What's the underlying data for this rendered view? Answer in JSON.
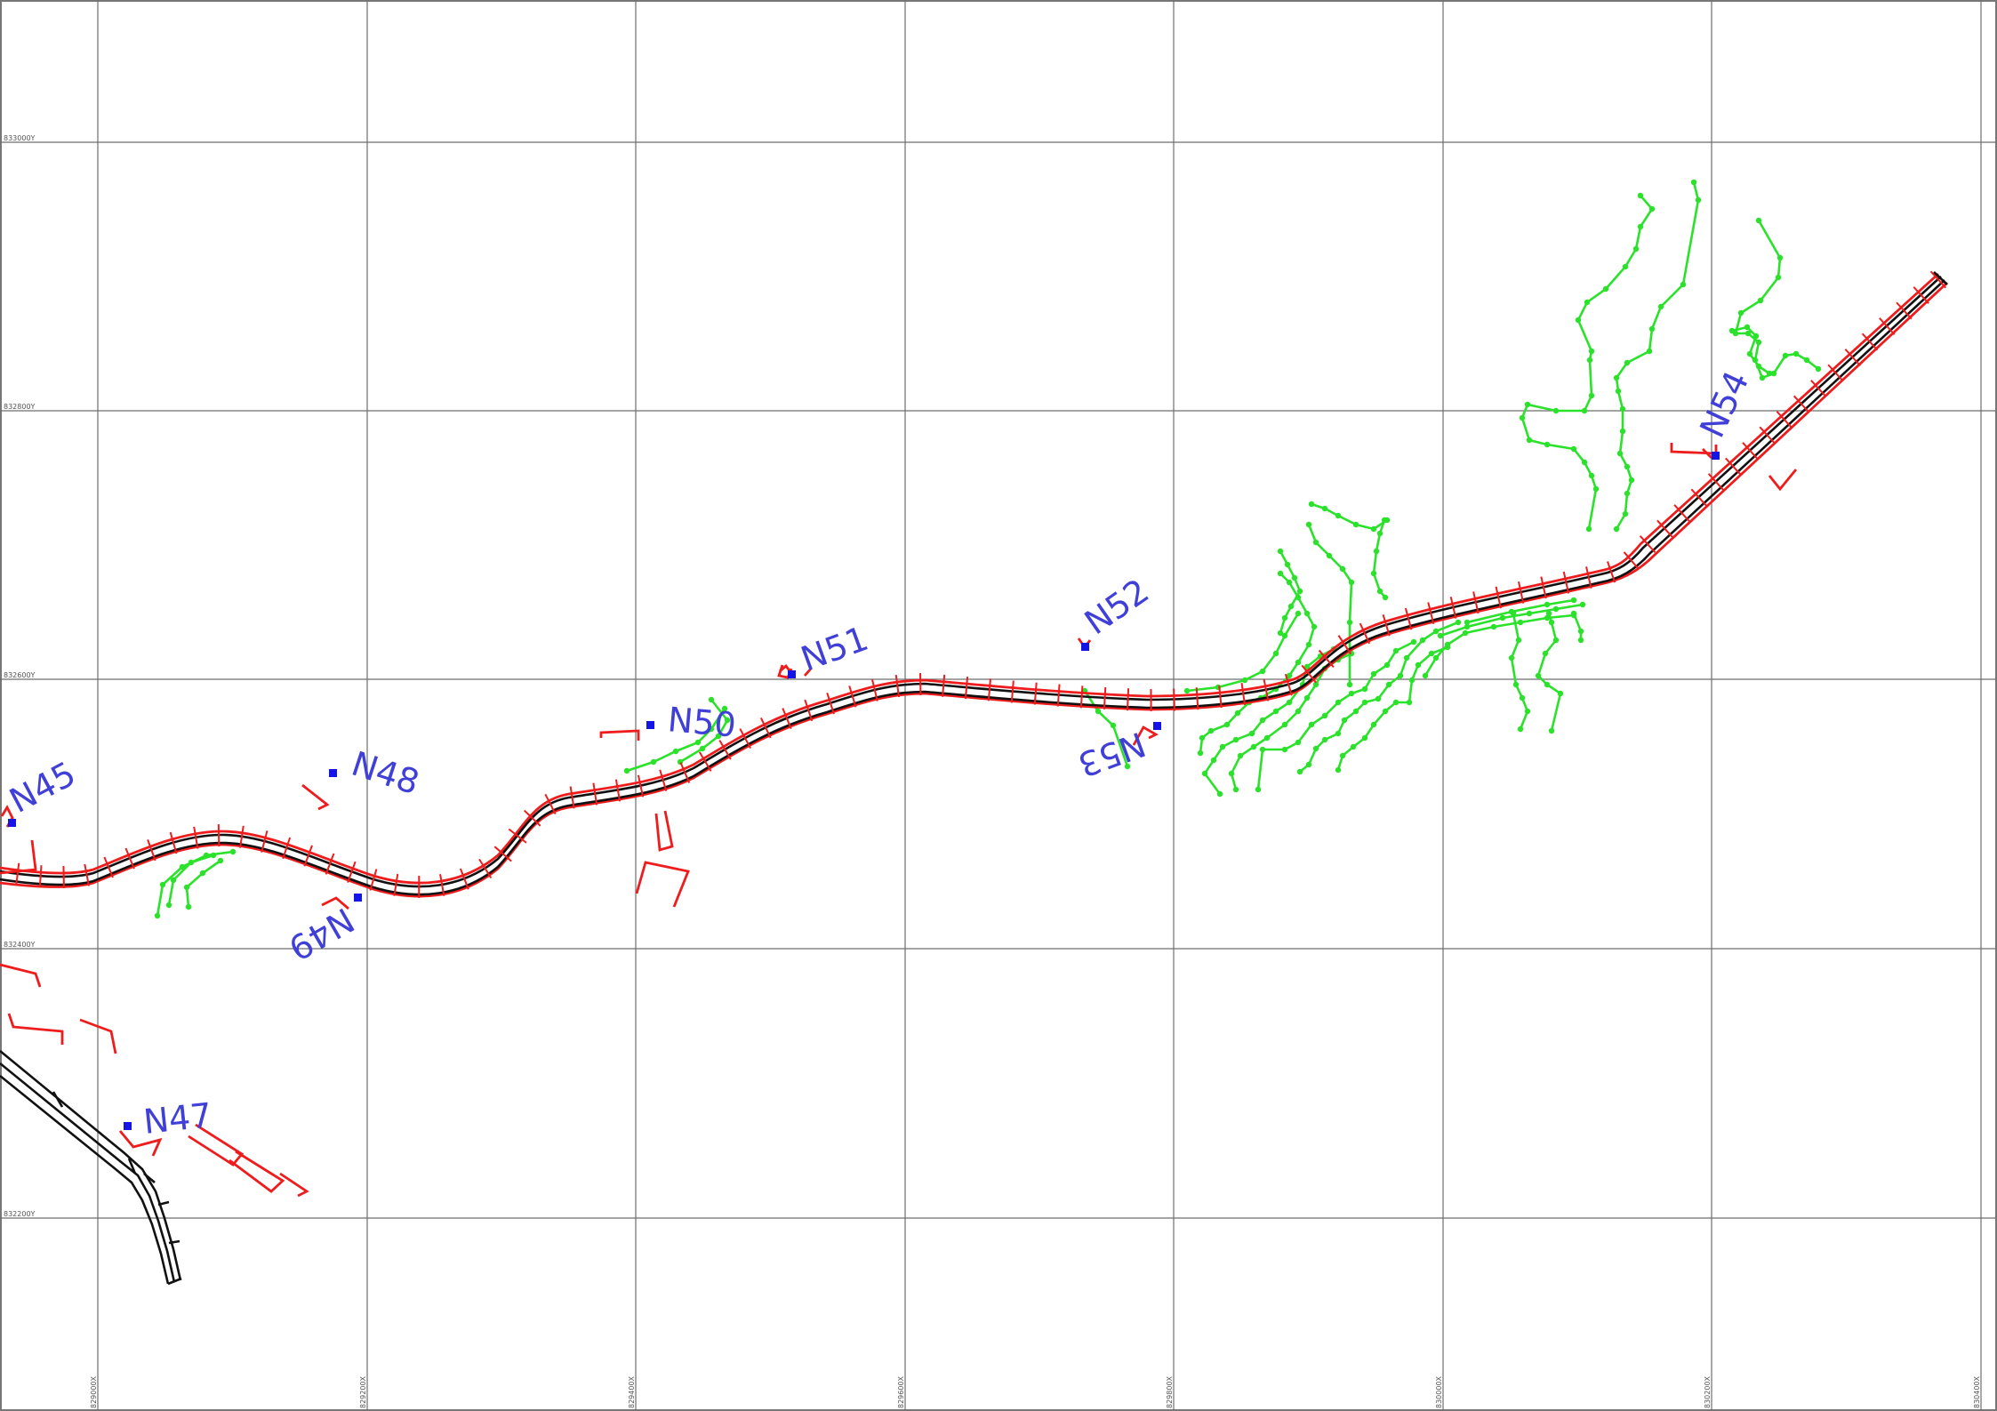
{
  "grid": {
    "y_labels": [
      "833000Y",
      "832800Y",
      "832600Y",
      "832400Y",
      "832200Y"
    ],
    "x_labels": [
      "829000X",
      "829200X",
      "829400X",
      "829600X",
      "829800X",
      "830000X",
      "830200X",
      "830400X"
    ]
  },
  "points": {
    "n45": "N45",
    "n47": "N47",
    "n48": "N48",
    "n49": "N49",
    "n50": "N50",
    "n51": "N51",
    "n52": "N52",
    "n53": "N53",
    "n54": "N54"
  },
  "colors": {
    "road_outline": "#ee1c1c",
    "road_centerline": "#111111",
    "contour": "#2be22b",
    "survey_point": "#1414e6",
    "label": "#4040d8",
    "grid": "#6e6e6e"
  }
}
